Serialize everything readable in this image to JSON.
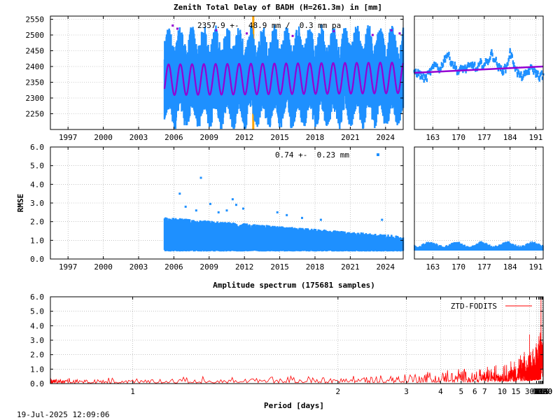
{
  "title": "Zenith Total Delay of BADH (H=261.3m) in [mm]",
  "footer_timestamp": "19-Jul-2025 12:09:06",
  "colors": {
    "data_blue": "#1e90ff",
    "model_purple": "#9400d3",
    "event_orange": "#ffa500",
    "spectrum_red": "#ff0000",
    "grid": "#a0a0a0"
  },
  "chart_data": [
    {
      "type": "scatter",
      "title": "Zenith Total Delay of BADH (H=261.3m) in [mm]",
      "annotation": "2357.9 +-  48.9 mm /  0.3 mm pa",
      "ylabel": "",
      "xlim": [
        1995.5,
        2025.5
      ],
      "ylim": [
        2200,
        2560
      ],
      "yticks": [
        2250,
        2300,
        2350,
        2400,
        2450,
        2500,
        2550
      ],
      "xticks": [
        1997,
        2000,
        2003,
        2006,
        2009,
        2012,
        2015,
        2018,
        2021,
        2024
      ],
      "data_range": [
        2005.2,
        2025.5
      ],
      "data_band_min": [
        2225,
        2300
      ],
      "data_band_max": [
        2450,
        2530
      ],
      "model": {
        "mean": 2357.9,
        "amplitude": 48.9,
        "trend_mm_per_year": 0.3,
        "period_years": 1
      },
      "event_line_x": 2012.75,
      "grid": true
    },
    {
      "type": "scatter",
      "title": "",
      "xlim": [
        158,
        193
      ],
      "ylim": [
        2200,
        2560
      ],
      "xticks": [
        163,
        170,
        177,
        184,
        191
      ],
      "points": [
        [
          158,
          2385
        ],
        [
          159,
          2378
        ],
        [
          160,
          2370
        ],
        [
          161,
          2360
        ],
        [
          162,
          2378
        ],
        [
          163,
          2395
        ],
        [
          164,
          2405
        ],
        [
          165,
          2390
        ],
        [
          166,
          2420
        ],
        [
          167,
          2440
        ],
        [
          168,
          2415
        ],
        [
          169,
          2400
        ],
        [
          170,
          2382
        ],
        [
          171,
          2395
        ],
        [
          172,
          2392
        ],
        [
          173,
          2400
        ],
        [
          174,
          2407
        ],
        [
          175,
          2388
        ],
        [
          176,
          2410
        ],
        [
          177,
          2405
        ],
        [
          178,
          2418
        ],
        [
          179,
          2440
        ],
        [
          180,
          2420
        ],
        [
          181,
          2395
        ],
        [
          182,
          2388
        ],
        [
          183,
          2395
        ],
        [
          184,
          2445
        ],
        [
          185,
          2410
        ],
        [
          186,
          2380
        ],
        [
          187,
          2368
        ],
        [
          188,
          2372
        ],
        [
          189,
          2386
        ],
        [
          190,
          2395
        ],
        [
          191,
          2380
        ],
        [
          192,
          2368
        ],
        [
          193,
          2375
        ]
      ],
      "model_line": [
        [
          158,
          2380
        ],
        [
          193,
          2400
        ]
      ],
      "grid": true
    },
    {
      "type": "scatter",
      "title": "",
      "annotation": "0.74 +-  0.23 mm",
      "ylabel": "RMSE",
      "xlim": [
        1995.5,
        2025.5
      ],
      "ylim": [
        0,
        6
      ],
      "yticks": [
        0.0,
        1.0,
        2.0,
        3.0,
        4.0,
        5.0,
        6.0
      ],
      "xticks": [
        1997,
        2000,
        2003,
        2006,
        2009,
        2012,
        2015,
        2018,
        2021,
        2024
      ],
      "data_range": [
        2005.2,
        2025.5
      ],
      "band_start": [
        0.4,
        2.0
      ],
      "band_end": [
        0.4,
        1.0
      ],
      "outliers": [
        [
          2006.5,
          3.5
        ],
        [
          2008.3,
          4.35
        ],
        [
          2007.0,
          2.8
        ],
        [
          2007.9,
          2.6
        ],
        [
          2009.1,
          2.95
        ],
        [
          2009.8,
          2.5
        ],
        [
          2010.5,
          2.6
        ],
        [
          2011.3,
          2.9
        ],
        [
          2011.9,
          2.7
        ],
        [
          2011.0,
          3.2
        ],
        [
          2014.8,
          2.5
        ],
        [
          2015.6,
          2.35
        ],
        [
          2016.9,
          2.2
        ],
        [
          2018.5,
          2.1
        ],
        [
          2023.7,
          2.1
        ]
      ],
      "grid": true
    },
    {
      "type": "scatter",
      "title": "",
      "xlim": [
        158,
        193
      ],
      "ylim": [
        0,
        6
      ],
      "xticks": [
        163,
        170,
        177,
        184,
        191
      ],
      "band": [
        0.45,
        0.8
      ],
      "grid": true
    },
    {
      "type": "line",
      "title": "Amplitude spectrum (175681 samples)",
      "xlabel": "Period [days]",
      "ylabel": "",
      "xscale": "reciprocal",
      "xlim": [
        0.833,
        8760
      ],
      "ylim": [
        0,
        6
      ],
      "yticks": [
        0.0,
        1.0,
        2.0,
        3.0,
        4.0,
        5.0,
        6.0
      ],
      "xticks": [
        1,
        2,
        3,
        4,
        5,
        6,
        7,
        10,
        15,
        30,
        61,
        91,
        122,
        183,
        365,
        730,
        2190,
        4380,
        8760
      ],
      "series": [
        {
          "name": "ZTD-FODITS",
          "peaks": [
            [
              365,
              2.7
            ],
            [
              730,
              2.85
            ],
            [
              1460,
              1.3
            ],
            [
              2190,
              2.4
            ],
            [
              4380,
              3.5
            ],
            [
              8760,
              0.45
            ],
            [
              183,
              6.0
            ],
            [
              91,
              2.35
            ],
            [
              61,
              2.1
            ],
            [
              30,
              3.4
            ],
            [
              250,
              2.9
            ],
            [
              300,
              1.85
            ],
            [
              500,
              1.5
            ],
            [
              1000,
              2.2
            ],
            [
              1750,
              1.45
            ]
          ]
        }
      ],
      "legend_position": "top-right",
      "grid": true
    }
  ]
}
